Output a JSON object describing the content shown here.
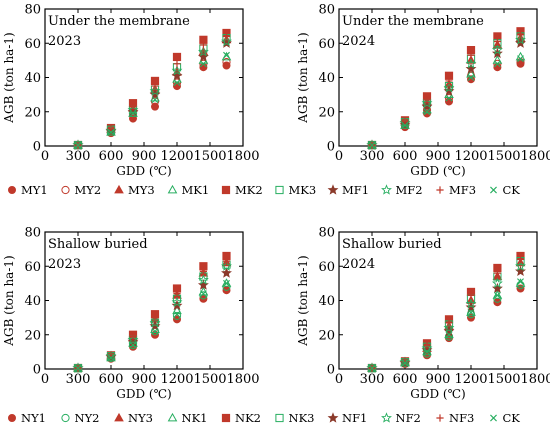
{
  "chart_data": [
    {
      "type": "scatter",
      "title": "Under the membrane",
      "subtitle": "2023",
      "xlabel": "GDD (℃)",
      "ylabel": "AGB (ton ha-1)",
      "xlim": [
        0,
        1800
      ],
      "ylim": [
        0,
        80
      ],
      "xticks": [
        0,
        300,
        600,
        900,
        1200,
        1500,
        1800
      ],
      "yticks": [
        0,
        20,
        40,
        60,
        80
      ],
      "grid": false,
      "x": [
        300,
        600,
        800,
        1000,
        1200,
        1440,
        1650
      ],
      "series": [
        {
          "name": "MY1",
          "marker": "circle-filled",
          "color": "#c0392b",
          "values": [
            0.3,
            7.5,
            16,
            23,
            35,
            46,
            47
          ]
        },
        {
          "name": "MY2",
          "marker": "circle-open",
          "color": "#c0392b",
          "values": [
            0.4,
            8.5,
            18,
            26,
            37,
            48,
            49
          ]
        },
        {
          "name": "MY3",
          "marker": "triangle-filled",
          "color": "#c0392b",
          "values": [
            0.5,
            9.5,
            22,
            33,
            43,
            55,
            62
          ]
        },
        {
          "name": "MK1",
          "marker": "triangle-open",
          "color": "#27ae60",
          "values": [
            0.4,
            8,
            19,
            28,
            39,
            50,
            52
          ]
        },
        {
          "name": "MK2",
          "marker": "square-filled",
          "color": "#c0392b",
          "values": [
            0.6,
            10.5,
            25,
            38,
            52,
            62,
            66
          ]
        },
        {
          "name": "MK3",
          "marker": "square-open",
          "color": "#27ae60",
          "values": [
            0.5,
            9.5,
            21,
            33,
            46,
            57,
            63
          ]
        },
        {
          "name": "MF1",
          "marker": "star-filled",
          "color": "#8b3a2b",
          "values": [
            0.4,
            8.5,
            20,
            30,
            41,
            52,
            60
          ]
        },
        {
          "name": "MF2",
          "marker": "star-open",
          "color": "#27ae60",
          "values": [
            0.5,
            9,
            21,
            32,
            44,
            55,
            61
          ]
        },
        {
          "name": "MF3",
          "marker": "plus",
          "color": "#c0392b",
          "values": [
            0.5,
            10,
            23,
            35,
            48,
            59,
            64
          ]
        },
        {
          "name": "CK",
          "marker": "cross",
          "color": "#27ae60",
          "values": [
            0.4,
            8,
            19,
            27,
            37,
            48,
            53
          ]
        }
      ]
    },
    {
      "type": "scatter",
      "title": "Under the membrane",
      "subtitle": "2024",
      "xlabel": "GDD (℃)",
      "ylabel": "AGB (ton ha-1)",
      "xlim": [
        0,
        1800
      ],
      "ylim": [
        0,
        80
      ],
      "xticks": [
        0,
        300,
        600,
        900,
        1200,
        1500,
        1800
      ],
      "yticks": [
        0,
        20,
        40,
        60,
        80
      ],
      "grid": false,
      "x": [
        300,
        600,
        800,
        1000,
        1200,
        1440,
        1650
      ],
      "series": [
        {
          "name": "MY1",
          "marker": "circle-filled",
          "color": "#c0392b",
          "values": [
            0.3,
            11,
            19,
            26,
            39,
            46,
            48
          ]
        },
        {
          "name": "MY2",
          "marker": "circle-open",
          "color": "#c0392b",
          "values": [
            0.4,
            12,
            21,
            28,
            41,
            48,
            49
          ]
        },
        {
          "name": "MY3",
          "marker": "triangle-filled",
          "color": "#c0392b",
          "values": [
            0.5,
            14,
            26,
            36,
            50,
            59,
            63
          ]
        },
        {
          "name": "MK1",
          "marker": "triangle-open",
          "color": "#27ae60",
          "values": [
            0.4,
            12,
            21,
            30,
            42,
            50,
            52
          ]
        },
        {
          "name": "MK2",
          "marker": "square-filled",
          "color": "#c0392b",
          "values": [
            0.6,
            15,
            29,
            41,
            56,
            64,
            67
          ]
        },
        {
          "name": "MK3",
          "marker": "square-open",
          "color": "#27ae60",
          "values": [
            0.5,
            14,
            25,
            35,
            51,
            60,
            64
          ]
        },
        {
          "name": "MF1",
          "marker": "star-filled",
          "color": "#8b3a2b",
          "values": [
            0.4,
            12.5,
            23,
            32,
            45,
            54,
            60
          ]
        },
        {
          "name": "MF2",
          "marker": "star-open",
          "color": "#27ae60",
          "values": [
            0.5,
            13.5,
            25,
            34,
            48,
            56,
            62
          ]
        },
        {
          "name": "MF3",
          "marker": "plus",
          "color": "#c0392b",
          "values": [
            0.5,
            14.5,
            27,
            38,
            53,
            61,
            65
          ]
        },
        {
          "name": "CK",
          "marker": "cross",
          "color": "#27ae60",
          "values": [
            0.4,
            12,
            20,
            28,
            40,
            48,
            51
          ]
        }
      ]
    },
    {
      "type": "scatter",
      "title": "Shallow buried",
      "subtitle": "2023",
      "xlabel": "GDD (℃)",
      "ylabel": "AGB (ton ha-1)",
      "xlim": [
        0,
        1800
      ],
      "ylim": [
        0,
        80
      ],
      "xticks": [
        0,
        300,
        600,
        900,
        1200,
        1500,
        1800
      ],
      "yticks": [
        0,
        20,
        40,
        60,
        80
      ],
      "grid": false,
      "x": [
        300,
        600,
        800,
        1000,
        1200,
        1440,
        1650
      ],
      "series": [
        {
          "name": "NY1",
          "marker": "circle-filled",
          "color": "#c0392b",
          "values": [
            0.3,
            6,
            13,
            20,
            29,
            41,
            46
          ]
        },
        {
          "name": "NY2",
          "marker": "circle-open",
          "color": "#27ae60",
          "values": [
            0.4,
            6.5,
            14,
            22,
            31,
            43,
            48
          ]
        },
        {
          "name": "NY3",
          "marker": "triangle-filled",
          "color": "#c0392b",
          "values": [
            0.5,
            7.5,
            18,
            29,
            43,
            56,
            62
          ]
        },
        {
          "name": "NK1",
          "marker": "triangle-open",
          "color": "#27ae60",
          "values": [
            0.4,
            6.5,
            15,
            23,
            34,
            45,
            50
          ]
        },
        {
          "name": "NK2",
          "marker": "square-filled",
          "color": "#c0392b",
          "values": [
            0.6,
            8,
            20,
            32,
            47,
            60,
            66
          ]
        },
        {
          "name": "NK3",
          "marker": "square-open",
          "color": "#27ae60",
          "values": [
            0.5,
            7.5,
            17,
            27,
            41,
            54,
            61
          ]
        },
        {
          "name": "NF1",
          "marker": "star-filled",
          "color": "#8b3a2b",
          "values": [
            0.4,
            7,
            16,
            25,
            37,
            49,
            56
          ]
        },
        {
          "name": "NF2",
          "marker": "star-open",
          "color": "#27ae60",
          "values": [
            0.5,
            7.5,
            17,
            27,
            39,
            52,
            60
          ]
        },
        {
          "name": "NF3",
          "marker": "plus",
          "color": "#c0392b",
          "values": [
            0.5,
            8,
            19,
            30,
            44,
            57,
            63
          ]
        },
        {
          "name": "CK",
          "marker": "cross",
          "color": "#27ae60",
          "values": [
            0.4,
            6.5,
            14,
            22,
            32,
            44,
            50
          ]
        }
      ]
    },
    {
      "type": "scatter",
      "title": "Shallow buried",
      "subtitle": "2024",
      "xlabel": "GDD (℃)",
      "ylabel": "AGB (ton ha-1)",
      "xlim": [
        0,
        1800
      ],
      "ylim": [
        0,
        80
      ],
      "xticks": [
        0,
        300,
        600,
        900,
        1200,
        1500,
        1800
      ],
      "yticks": [
        0,
        20,
        40,
        60,
        80
      ],
      "grid": false,
      "x": [
        300,
        600,
        800,
        1000,
        1200,
        1440,
        1650
      ],
      "series": [
        {
          "name": "NY1",
          "marker": "circle-filled",
          "color": "#c0392b",
          "values": [
            0.3,
            3,
            8,
            18,
            30,
            39,
            47
          ]
        },
        {
          "name": "NY2",
          "marker": "circle-open",
          "color": "#27ae60",
          "values": [
            0.4,
            3.5,
            9,
            19,
            32,
            41,
            49
          ]
        },
        {
          "name": "NY3",
          "marker": "triangle-filled",
          "color": "#c0392b",
          "values": [
            0.5,
            4,
            12,
            25,
            40,
            54,
            62
          ]
        },
        {
          "name": "NK1",
          "marker": "triangle-open",
          "color": "#27ae60",
          "values": [
            0.4,
            3.5,
            10,
            20,
            33,
            43,
            50
          ]
        },
        {
          "name": "NK2",
          "marker": "square-filled",
          "color": "#c0392b",
          "values": [
            0.6,
            4.5,
            15,
            29,
            45,
            59,
            66
          ]
        },
        {
          "name": "NK3",
          "marker": "square-open",
          "color": "#27ae60",
          "values": [
            0.5,
            4,
            13,
            26,
            41,
            54,
            63
          ]
        },
        {
          "name": "NF1",
          "marker": "star-filled",
          "color": "#8b3a2b",
          "values": [
            0.4,
            3.5,
            11,
            22,
            36,
            47,
            57
          ]
        },
        {
          "name": "NF2",
          "marker": "star-open",
          "color": "#27ae60",
          "values": [
            0.5,
            4,
            12,
            24,
            38,
            50,
            60
          ]
        },
        {
          "name": "NF3",
          "marker": "plus",
          "color": "#c0392b",
          "values": [
            0.5,
            4.5,
            14,
            27,
            43,
            56,
            64
          ]
        },
        {
          "name": "CK",
          "marker": "cross",
          "color": "#27ae60",
          "values": [
            0.4,
            3.5,
            10,
            20,
            33,
            43,
            51
          ]
        }
      ]
    }
  ],
  "legends": [
    {
      "placement": "below-top-row",
      "entries": [
        {
          "label": "MY1",
          "marker": "circle-filled",
          "color": "#c0392b"
        },
        {
          "label": "MY2",
          "marker": "circle-open",
          "color": "#c0392b"
        },
        {
          "label": "MY3",
          "marker": "triangle-filled",
          "color": "#c0392b"
        },
        {
          "label": "MK1",
          "marker": "triangle-open",
          "color": "#27ae60"
        },
        {
          "label": "MK2",
          "marker": "square-filled",
          "color": "#c0392b"
        },
        {
          "label": "MK3",
          "marker": "square-open",
          "color": "#27ae60"
        },
        {
          "label": "MF1",
          "marker": "star-filled",
          "color": "#8b3a2b"
        },
        {
          "label": "MF2",
          "marker": "star-open",
          "color": "#27ae60"
        },
        {
          "label": "MF3",
          "marker": "plus",
          "color": "#c0392b"
        },
        {
          "label": "CK",
          "marker": "cross",
          "color": "#27ae60"
        }
      ]
    },
    {
      "placement": "below-bottom-row",
      "entries": [
        {
          "label": "NY1",
          "marker": "circle-filled",
          "color": "#c0392b"
        },
        {
          "label": "NY2",
          "marker": "circle-open",
          "color": "#27ae60"
        },
        {
          "label": "NY3",
          "marker": "triangle-filled",
          "color": "#c0392b"
        },
        {
          "label": "NK1",
          "marker": "triangle-open",
          "color": "#27ae60"
        },
        {
          "label": "NK2",
          "marker": "square-filled",
          "color": "#c0392b"
        },
        {
          "label": "NK3",
          "marker": "square-open",
          "color": "#27ae60"
        },
        {
          "label": "NF1",
          "marker": "star-filled",
          "color": "#8b3a2b"
        },
        {
          "label": "NF2",
          "marker": "star-open",
          "color": "#27ae60"
        },
        {
          "label": "NF3",
          "marker": "plus",
          "color": "#c0392b"
        },
        {
          "label": "CK",
          "marker": "cross",
          "color": "#27ae60"
        }
      ]
    }
  ]
}
